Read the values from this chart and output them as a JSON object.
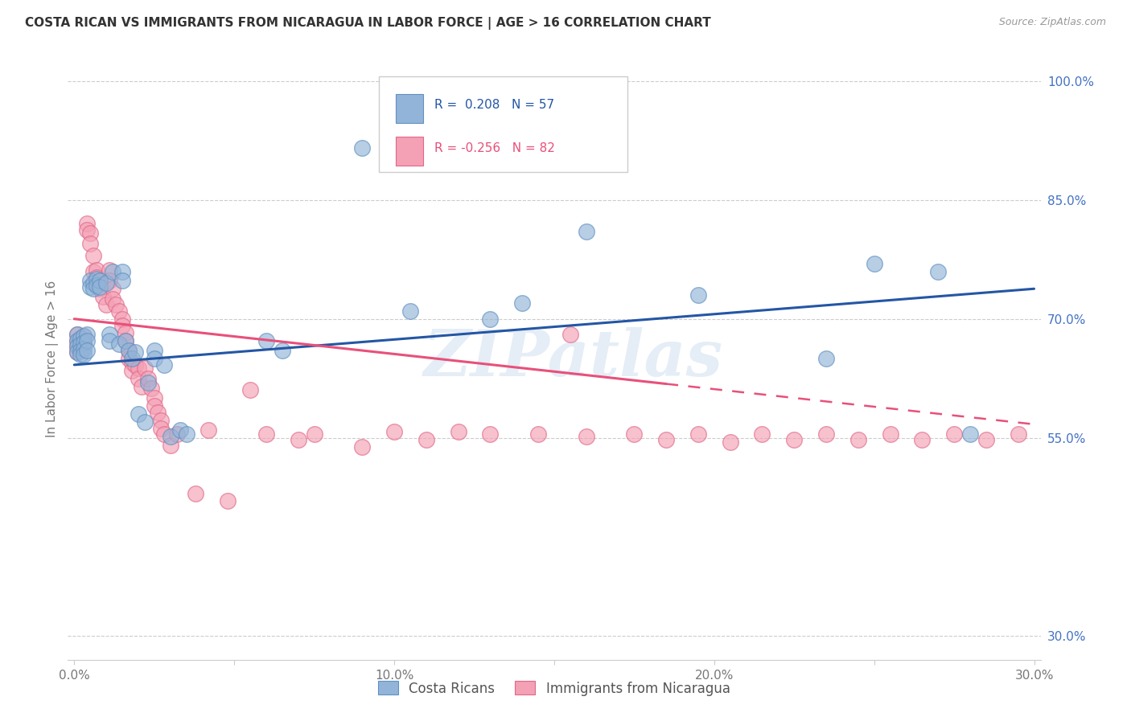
{
  "title": "COSTA RICAN VS IMMIGRANTS FROM NICARAGUA IN LABOR FORCE | AGE > 16 CORRELATION CHART",
  "source_text": "Source: ZipAtlas.com",
  "ylabel": "In Labor Force | Age > 16",
  "xlim": [
    -0.002,
    0.302
  ],
  "ylim": [
    0.27,
    1.03
  ],
  "xticks": [
    0.0,
    0.05,
    0.1,
    0.15,
    0.2,
    0.25,
    0.3
  ],
  "xticklabels": [
    "0.0%",
    "",
    "10.0%",
    "",
    "20.0%",
    "",
    "30.0%"
  ],
  "yticks_right": [
    1.0,
    0.85,
    0.7,
    0.55,
    0.3
  ],
  "ytick_labels_right": [
    "100.0%",
    "85.0%",
    "70.0%",
    "55.0%",
    "30.0%"
  ],
  "grid_color": "#cccccc",
  "background_color": "#ffffff",
  "blue_color": "#92b4d8",
  "pink_color": "#f4a0b5",
  "blue_edge_color": "#6090c0",
  "pink_edge_color": "#e06888",
  "blue_line_color": "#2456a4",
  "pink_line_color": "#e8507a",
  "legend_label1": "Costa Ricans",
  "legend_label2": "Immigrants from Nicaragua",
  "watermark": "ZIPatlas",
  "blue_scatter": [
    [
      0.001,
      0.68
    ],
    [
      0.001,
      0.672
    ],
    [
      0.001,
      0.665
    ],
    [
      0.001,
      0.658
    ],
    [
      0.002,
      0.675
    ],
    [
      0.002,
      0.668
    ],
    [
      0.002,
      0.66
    ],
    [
      0.002,
      0.655
    ],
    [
      0.003,
      0.678
    ],
    [
      0.003,
      0.67
    ],
    [
      0.003,
      0.662
    ],
    [
      0.003,
      0.655
    ],
    [
      0.004,
      0.68
    ],
    [
      0.004,
      0.672
    ],
    [
      0.004,
      0.66
    ],
    [
      0.005,
      0.748
    ],
    [
      0.005,
      0.74
    ],
    [
      0.006,
      0.745
    ],
    [
      0.006,
      0.738
    ],
    [
      0.007,
      0.75
    ],
    [
      0.007,
      0.742
    ],
    [
      0.008,
      0.748
    ],
    [
      0.008,
      0.74
    ],
    [
      0.01,
      0.745
    ],
    [
      0.011,
      0.68
    ],
    [
      0.011,
      0.672
    ],
    [
      0.012,
      0.76
    ],
    [
      0.014,
      0.668
    ],
    [
      0.015,
      0.76
    ],
    [
      0.015,
      0.748
    ],
    [
      0.016,
      0.672
    ],
    [
      0.017,
      0.66
    ],
    [
      0.018,
      0.65
    ],
    [
      0.019,
      0.658
    ],
    [
      0.02,
      0.58
    ],
    [
      0.022,
      0.57
    ],
    [
      0.023,
      0.62
    ],
    [
      0.025,
      0.66
    ],
    [
      0.025,
      0.65
    ],
    [
      0.028,
      0.642
    ],
    [
      0.03,
      0.552
    ],
    [
      0.033,
      0.56
    ],
    [
      0.035,
      0.555
    ],
    [
      0.06,
      0.672
    ],
    [
      0.065,
      0.66
    ],
    [
      0.09,
      0.916
    ],
    [
      0.105,
      0.71
    ],
    [
      0.13,
      0.7
    ],
    [
      0.14,
      0.72
    ],
    [
      0.16,
      0.81
    ],
    [
      0.195,
      0.73
    ],
    [
      0.235,
      0.65
    ],
    [
      0.25,
      0.77
    ],
    [
      0.27,
      0.76
    ],
    [
      0.28,
      0.555
    ]
  ],
  "pink_scatter": [
    [
      0.001,
      0.68
    ],
    [
      0.001,
      0.672
    ],
    [
      0.001,
      0.665
    ],
    [
      0.001,
      0.658
    ],
    [
      0.002,
      0.675
    ],
    [
      0.002,
      0.668
    ],
    [
      0.002,
      0.66
    ],
    [
      0.003,
      0.678
    ],
    [
      0.003,
      0.67
    ],
    [
      0.004,
      0.82
    ],
    [
      0.004,
      0.812
    ],
    [
      0.005,
      0.808
    ],
    [
      0.005,
      0.795
    ],
    [
      0.006,
      0.78
    ],
    [
      0.006,
      0.76
    ],
    [
      0.007,
      0.762
    ],
    [
      0.007,
      0.752
    ],
    [
      0.008,
      0.748
    ],
    [
      0.008,
      0.738
    ],
    [
      0.009,
      0.728
    ],
    [
      0.01,
      0.718
    ],
    [
      0.011,
      0.762
    ],
    [
      0.011,
      0.748
    ],
    [
      0.012,
      0.738
    ],
    [
      0.012,
      0.725
    ],
    [
      0.013,
      0.718
    ],
    [
      0.014,
      0.71
    ],
    [
      0.015,
      0.7
    ],
    [
      0.015,
      0.692
    ],
    [
      0.016,
      0.682
    ],
    [
      0.016,
      0.672
    ],
    [
      0.017,
      0.66
    ],
    [
      0.017,
      0.65
    ],
    [
      0.018,
      0.645
    ],
    [
      0.018,
      0.635
    ],
    [
      0.019,
      0.642
    ],
    [
      0.02,
      0.638
    ],
    [
      0.02,
      0.625
    ],
    [
      0.021,
      0.615
    ],
    [
      0.022,
      0.638
    ],
    [
      0.023,
      0.625
    ],
    [
      0.024,
      0.612
    ],
    [
      0.025,
      0.6
    ],
    [
      0.025,
      0.59
    ],
    [
      0.026,
      0.582
    ],
    [
      0.027,
      0.572
    ],
    [
      0.027,
      0.562
    ],
    [
      0.028,
      0.555
    ],
    [
      0.03,
      0.54
    ],
    [
      0.032,
      0.555
    ],
    [
      0.038,
      0.48
    ],
    [
      0.042,
      0.56
    ],
    [
      0.048,
      0.47
    ],
    [
      0.055,
      0.61
    ],
    [
      0.06,
      0.555
    ],
    [
      0.07,
      0.548
    ],
    [
      0.075,
      0.555
    ],
    [
      0.09,
      0.538
    ],
    [
      0.1,
      0.558
    ],
    [
      0.11,
      0.548
    ],
    [
      0.12,
      0.558
    ],
    [
      0.13,
      0.555
    ],
    [
      0.145,
      0.555
    ],
    [
      0.155,
      0.68
    ],
    [
      0.16,
      0.552
    ],
    [
      0.175,
      0.555
    ],
    [
      0.185,
      0.548
    ],
    [
      0.195,
      0.555
    ],
    [
      0.205,
      0.545
    ],
    [
      0.215,
      0.555
    ],
    [
      0.225,
      0.548
    ],
    [
      0.235,
      0.555
    ],
    [
      0.245,
      0.548
    ],
    [
      0.255,
      0.555
    ],
    [
      0.265,
      0.548
    ],
    [
      0.275,
      0.555
    ],
    [
      0.285,
      0.548
    ],
    [
      0.295,
      0.555
    ]
  ],
  "blue_line": [
    [
      0.0,
      0.642
    ],
    [
      0.3,
      0.738
    ]
  ],
  "pink_line_solid": [
    [
      0.0,
      0.7
    ],
    [
      0.185,
      0.618
    ]
  ],
  "pink_line_dashed": [
    [
      0.185,
      0.618
    ],
    [
      0.3,
      0.567
    ]
  ]
}
